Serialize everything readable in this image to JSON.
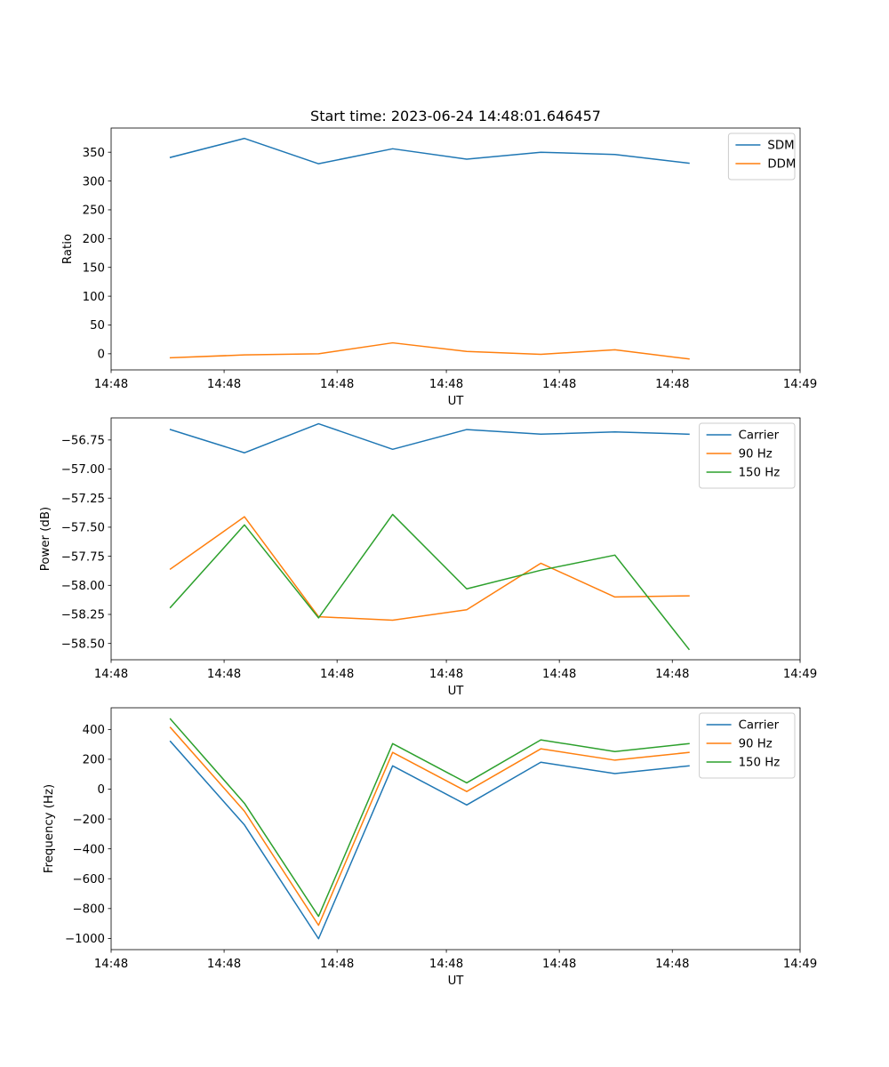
{
  "figure_title": "Start time: 2023-06-24 14:48:01.646457",
  "chart_data": [
    {
      "type": "line",
      "ylabel": "Ratio",
      "xlabel": "UT",
      "x": [
        1,
        2,
        3,
        4,
        5,
        6,
        7,
        8
      ],
      "xlim": [
        0.2,
        9.5
      ],
      "xticks": [
        0.2,
        1.725,
        3.25,
        4.725,
        6.25,
        7.775,
        9.5
      ],
      "xtick_labels": [
        "14:48",
        "14:48",
        "14:48",
        "14:48",
        "14:48",
        "14:48",
        "14:49"
      ],
      "ylim": [
        -28,
        392
      ],
      "yticks": [
        0,
        50,
        100,
        150,
        200,
        250,
        300,
        350
      ],
      "ytick_labels": [
        "0",
        "50",
        "100",
        "150",
        "200",
        "250",
        "300",
        "350"
      ],
      "legend_position": "upper right",
      "series": [
        {
          "name": "SDM",
          "color": "#1f77b4",
          "values": [
            341,
            374,
            330,
            356,
            338,
            350,
            346,
            331
          ]
        },
        {
          "name": "DDM",
          "color": "#ff7f0e",
          "values": [
            -7,
            -2,
            0,
            19,
            4,
            -1,
            7,
            -9
          ]
        }
      ]
    },
    {
      "type": "line",
      "ylabel": "Power (dB)",
      "xlabel": "UT",
      "x": [
        1,
        2,
        3,
        4,
        5,
        6,
        7,
        8
      ],
      "xlim": [
        0.2,
        9.5
      ],
      "xticks": [
        0.2,
        1.725,
        3.25,
        4.725,
        6.25,
        7.775,
        9.5
      ],
      "xtick_labels": [
        "14:48",
        "14:48",
        "14:48",
        "14:48",
        "14:48",
        "14:48",
        "14:49"
      ],
      "ylim": [
        -58.64,
        -56.56
      ],
      "yticks": [
        -58.5,
        -58.25,
        -58.0,
        -57.75,
        -57.5,
        -57.25,
        -57.0,
        -56.75
      ],
      "ytick_labels": [
        "−58.50",
        "−58.25",
        "−58.00",
        "−57.75",
        "−57.50",
        "−57.25",
        "−57.00",
        "−56.75"
      ],
      "legend_position": "upper right",
      "series": [
        {
          "name": "Carrier",
          "color": "#1f77b4",
          "values": [
            -56.66,
            -56.86,
            -56.61,
            -56.83,
            -56.66,
            -56.7,
            -56.68,
            -56.7
          ]
        },
        {
          "name": "90 Hz",
          "color": "#ff7f0e",
          "values": [
            -57.86,
            -57.41,
            -58.27,
            -58.3,
            -58.21,
            -57.81,
            -58.1,
            -58.09
          ]
        },
        {
          "name": "150 Hz",
          "color": "#2ca02c",
          "values": [
            -58.19,
            -57.48,
            -58.28,
            -57.39,
            -58.03,
            -57.87,
            -57.74,
            -58.55
          ]
        }
      ]
    },
    {
      "type": "line",
      "ylabel": "Frequency (Hz)",
      "xlabel": "UT",
      "x": [
        1,
        2,
        3,
        4,
        5,
        6,
        7,
        8
      ],
      "xlim": [
        0.2,
        9.5
      ],
      "xticks": [
        0.2,
        1.725,
        3.25,
        4.725,
        6.25,
        7.775,
        9.5
      ],
      "xtick_labels": [
        "14:48",
        "14:48",
        "14:48",
        "14:48",
        "14:48",
        "14:48",
        "14:49"
      ],
      "ylim": [
        -1075,
        545
      ],
      "yticks": [
        -1000,
        -800,
        -600,
        -400,
        -200,
        0,
        200,
        400
      ],
      "ytick_labels": [
        "−1000",
        "−800",
        "−600",
        "−400",
        "−200",
        "0",
        "200",
        "400"
      ],
      "legend_position": "upper right",
      "series": [
        {
          "name": "Carrier",
          "color": "#1f77b4",
          "values": [
            320,
            -240,
            -1002,
            156,
            -106,
            180,
            104,
            156
          ]
        },
        {
          "name": "90 Hz",
          "color": "#ff7f0e",
          "values": [
            413,
            -148,
            -912,
            246,
            -16,
            270,
            194,
            246
          ]
        },
        {
          "name": "150 Hz",
          "color": "#2ca02c",
          "values": [
            470,
            -95,
            -852,
            305,
            42,
            330,
            252,
            305
          ]
        }
      ]
    }
  ]
}
